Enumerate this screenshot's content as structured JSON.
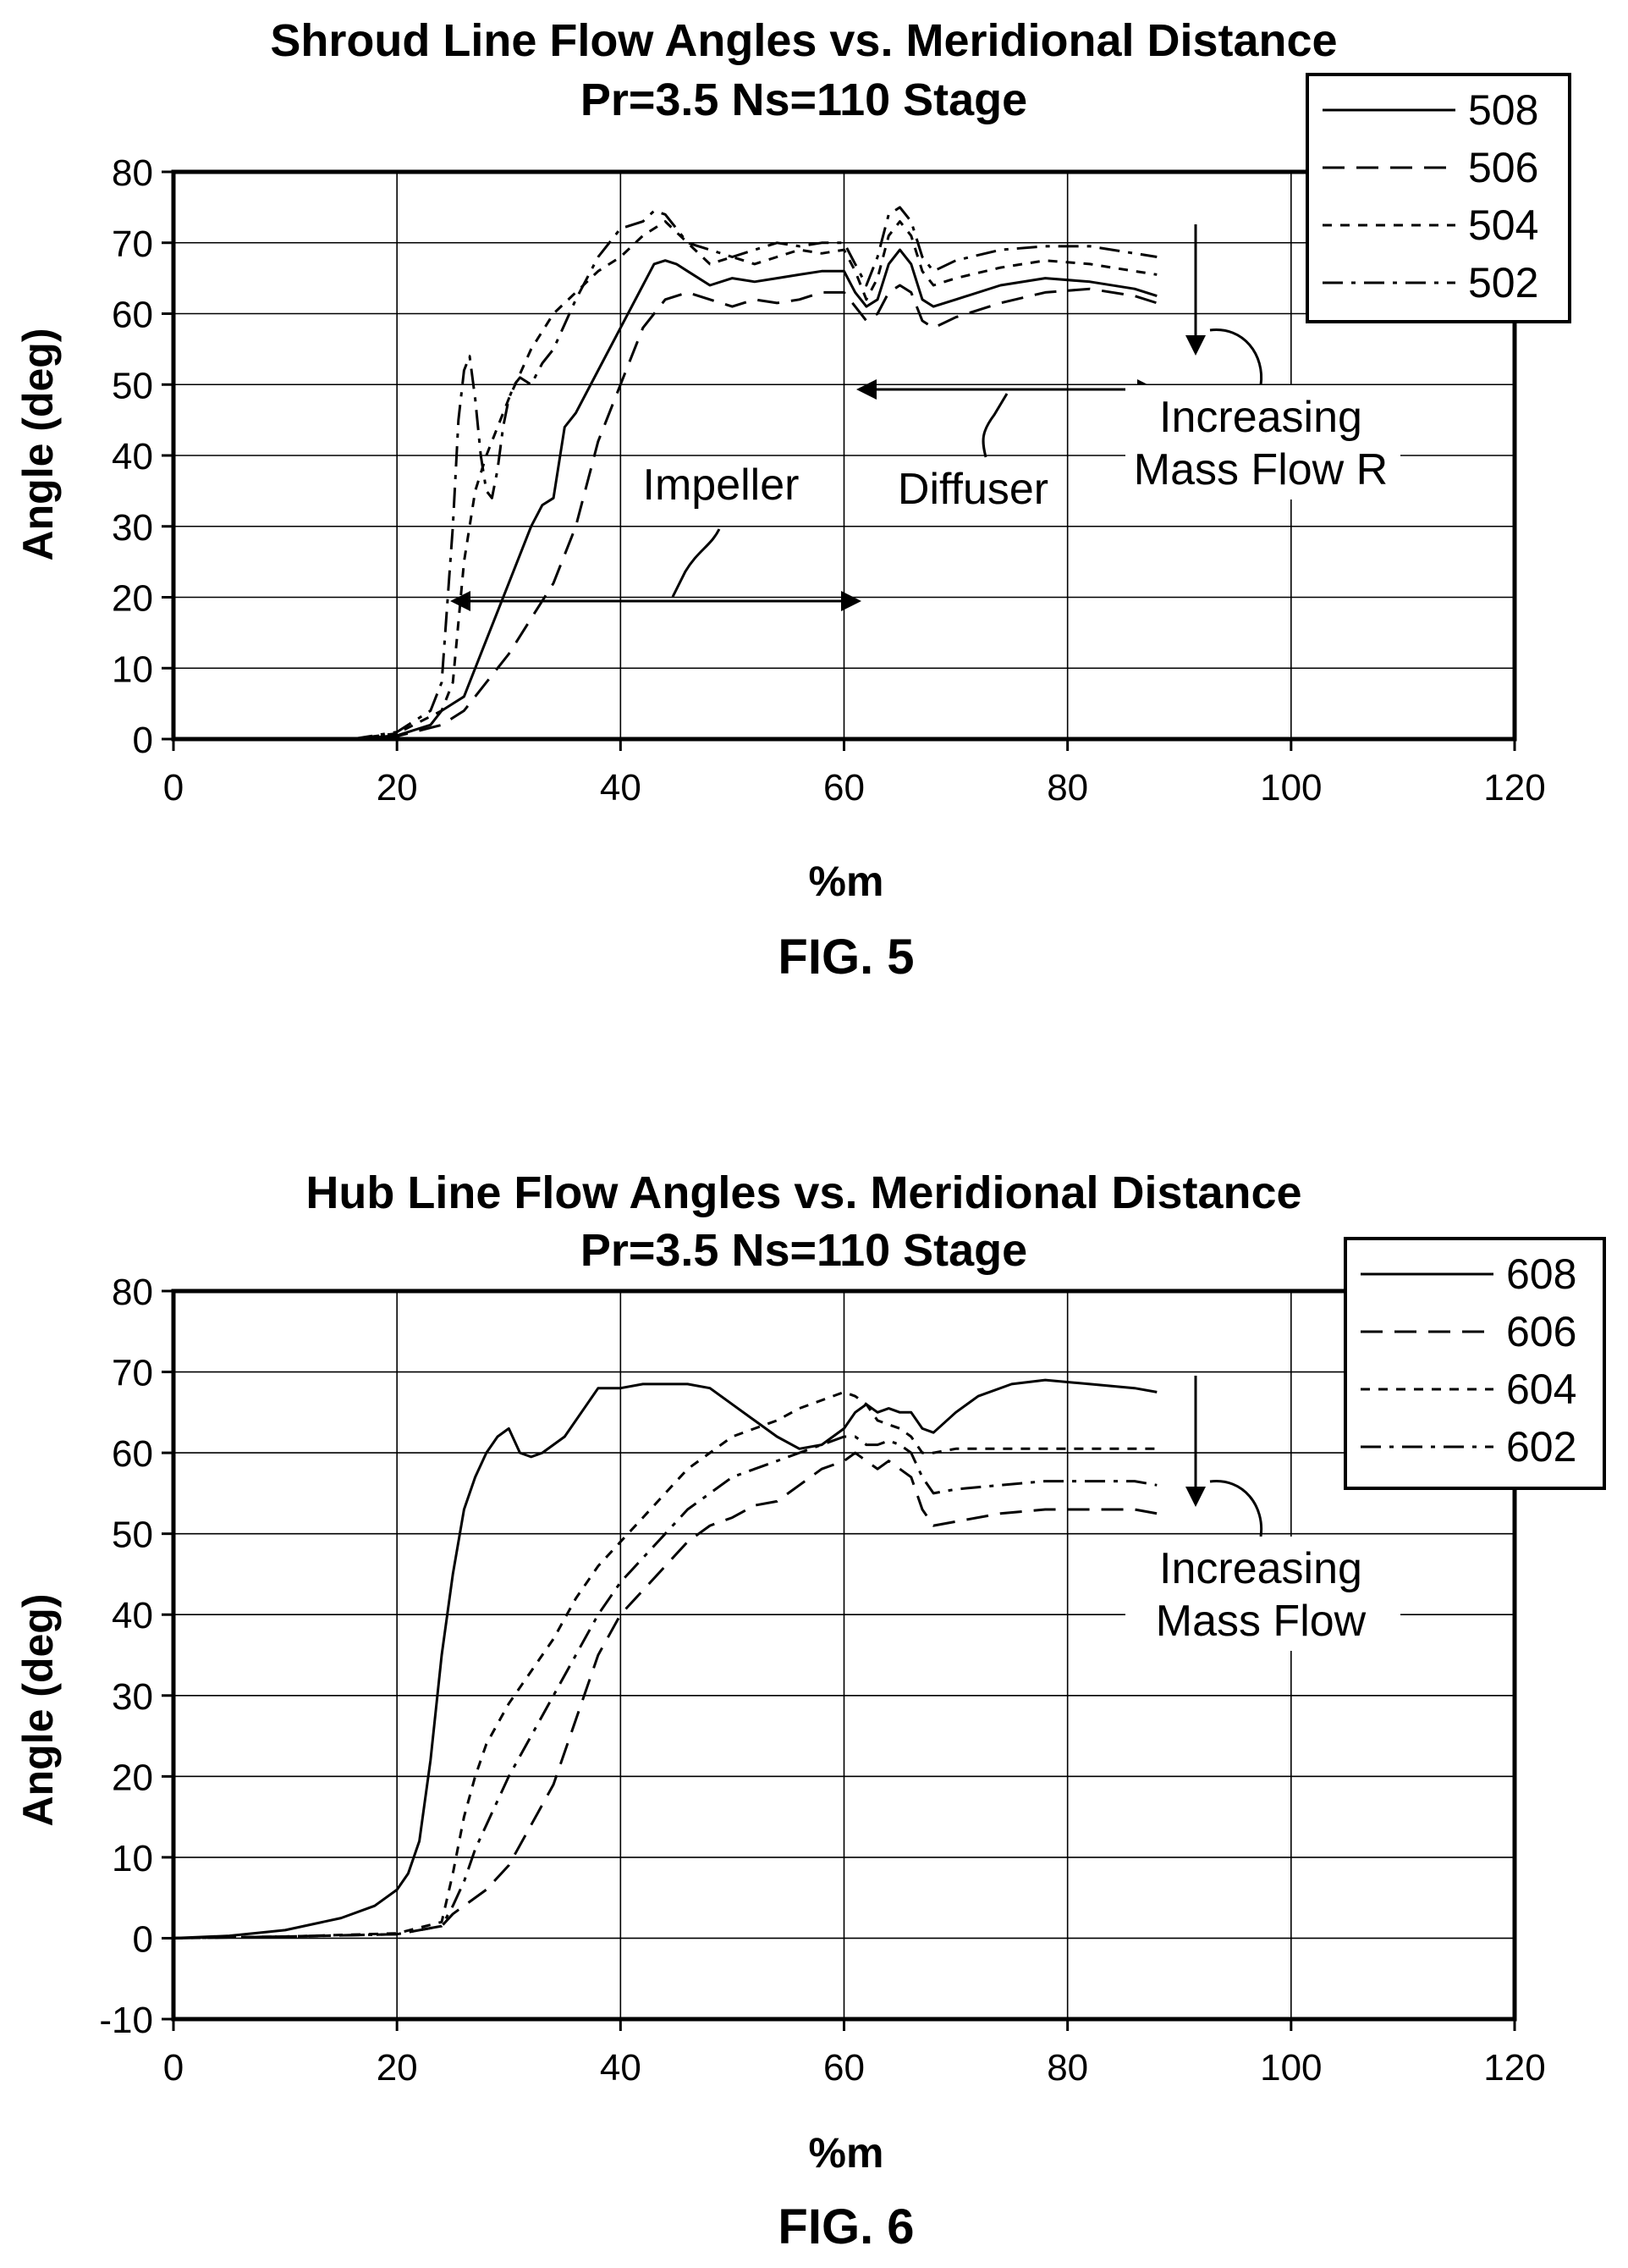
{
  "chart_data": [
    {
      "type": "line",
      "title": "Shroud Line Flow Angles vs. Meridional Distance",
      "subtitle": "Pr=3.5 Ns=110 Stage",
      "xlabel": "%m",
      "ylabel": "Angle (deg)",
      "caption": "FIG. 5",
      "xlim": [
        0,
        120
      ],
      "ylim": [
        0,
        80
      ],
      "xticks": [
        0,
        20,
        40,
        60,
        80,
        100,
        120
      ],
      "yticks": [
        0,
        10,
        20,
        30,
        40,
        50,
        60,
        70,
        80
      ],
      "grid": true,
      "legend_position": "top-right",
      "series": [
        {
          "name": "508",
          "dash": "solid",
          "x": [
            16,
            20,
            23,
            24,
            25,
            26,
            28,
            30,
            32,
            33,
            34,
            35,
            36,
            38,
            40,
            42,
            43,
            44,
            45,
            46,
            48,
            50,
            52,
            54,
            56,
            58,
            60,
            61,
            62,
            63,
            64,
            65,
            66,
            67,
            68,
            70,
            74,
            78,
            82,
            86,
            88
          ],
          "y": [
            0,
            0.5,
            2,
            4,
            5,
            6,
            14,
            22,
            30,
            33,
            34,
            44,
            46,
            52,
            58,
            64,
            67,
            67.5,
            67,
            66,
            64,
            65,
            64.5,
            65,
            65.5,
            66,
            66,
            63,
            61,
            62,
            67,
            69,
            67,
            62,
            61,
            62,
            64,
            65,
            64.5,
            63.5,
            62.5
          ]
        },
        {
          "name": "506",
          "dash": "long-dash",
          "x": [
            16,
            20,
            24,
            25,
            26,
            28,
            30,
            32,
            34,
            36,
            37,
            38,
            40,
            42,
            44,
            46,
            48,
            50,
            52,
            54,
            56,
            58,
            60,
            61,
            62,
            63,
            64,
            65,
            66,
            67,
            68,
            70,
            74,
            78,
            82,
            86,
            88
          ],
          "y": [
            0,
            0.4,
            2,
            3,
            4,
            8,
            12,
            17,
            22,
            30,
            36,
            42,
            50,
            58,
            62,
            63,
            62,
            61,
            62,
            61.5,
            62,
            63,
            63,
            61,
            59,
            60,
            63,
            64,
            63,
            59,
            58,
            59.5,
            61.5,
            63,
            63.5,
            62.5,
            61.5
          ]
        },
        {
          "name": "504",
          "dash": "short-dash",
          "x": [
            16,
            20,
            24,
            25,
            26,
            27,
            28,
            30,
            32,
            34,
            36,
            38,
            40,
            42,
            44,
            46,
            48,
            50,
            52,
            54,
            56,
            58,
            60,
            61,
            62,
            63,
            64,
            65,
            66,
            67,
            68,
            70,
            74,
            78,
            82,
            86,
            88
          ],
          "y": [
            0,
            0.8,
            4,
            8,
            25,
            35,
            40,
            48,
            55,
            60,
            63,
            66,
            68,
            71,
            73,
            70,
            67,
            68,
            67,
            68,
            69,
            68.5,
            69,
            66,
            62,
            65,
            71,
            73,
            71,
            66,
            64,
            65,
            66.5,
            67.5,
            67,
            66,
            65.5
          ]
        },
        {
          "name": "502",
          "dash": "dash-dot",
          "x": [
            16,
            20,
            23,
            24,
            25,
            25.5,
            26,
            26.5,
            27,
            27.5,
            28,
            28.5,
            29,
            29.5,
            30,
            30.5,
            31,
            32,
            33,
            34,
            36,
            38,
            40,
            42,
            43,
            44,
            45,
            46,
            48,
            50,
            52,
            54,
            56,
            58,
            60,
            61,
            62,
            63,
            64,
            65,
            66,
            67,
            68,
            70,
            74,
            78,
            82,
            86,
            88
          ],
          "y": [
            0,
            1,
            4,
            8,
            30,
            45,
            52,
            54,
            48,
            40,
            35,
            34,
            38,
            44,
            48,
            50,
            51,
            50,
            53,
            55,
            62,
            68,
            72,
            73,
            74.5,
            74,
            72,
            70,
            69,
            68,
            69,
            70,
            69.5,
            70,
            70,
            67,
            64,
            68,
            74,
            75,
            73,
            68,
            66,
            67.5,
            69,
            69.5,
            69.5,
            68.5,
            68
          ]
        }
      ],
      "annotations": {
        "impeller": "Impeller",
        "diffuser": "Diffuser",
        "increasing_1": "Increasing",
        "increasing_2": "Mass Flow R"
      }
    },
    {
      "type": "line",
      "title": "Hub Line Flow Angles vs. Meridional Distance",
      "subtitle": "Pr=3.5 Ns=110 Stage",
      "xlabel": "%m",
      "ylabel": "Angle (deg)",
      "caption": "FIG. 6",
      "xlim": [
        0,
        120
      ],
      "ylim": [
        -10,
        80
      ],
      "xticks": [
        0,
        20,
        40,
        60,
        80,
        100,
        120
      ],
      "yticks": [
        -10,
        0,
        10,
        20,
        30,
        40,
        50,
        60,
        70,
        80
      ],
      "grid": true,
      "legend_position": "top-right",
      "series": [
        {
          "name": "608",
          "dash": "solid",
          "x": [
            0,
            5,
            10,
            15,
            18,
            20,
            21,
            22,
            23,
            24,
            25,
            26,
            27,
            28,
            29,
            30,
            31,
            32,
            33,
            35,
            37,
            38,
            40,
            42,
            44,
            46,
            48,
            50,
            52,
            54,
            56,
            58,
            60,
            61,
            62,
            63,
            64,
            65,
            66,
            67,
            68,
            70,
            72,
            75,
            78,
            82,
            86,
            88
          ],
          "y": [
            0,
            0.3,
            1,
            2.5,
            4,
            6,
            8,
            12,
            22,
            35,
            45,
            53,
            57,
            60,
            62,
            63,
            60,
            59.5,
            60,
            62,
            66,
            68,
            68,
            68.5,
            68.5,
            68.5,
            68,
            66,
            64,
            62,
            60.5,
            61,
            63,
            65,
            66,
            65,
            65.5,
            65,
            65,
            63,
            62.5,
            65,
            67,
            68.5,
            69,
            68.5,
            68,
            67.5
          ]
        },
        {
          "name": "606",
          "dash": "long-dash",
          "x": [
            0,
            10,
            20,
            24,
            25,
            26,
            28,
            30,
            32,
            34,
            36,
            38,
            40,
            42,
            44,
            46,
            48,
            50,
            52,
            54,
            56,
            58,
            60,
            61,
            62,
            63,
            64,
            65,
            66,
            67,
            68,
            70,
            74,
            78,
            82,
            86,
            88
          ],
          "y": [
            0,
            0.2,
            0.5,
            1.5,
            3,
            4,
            6,
            9,
            14,
            19,
            27,
            35,
            40,
            43,
            46,
            49,
            51,
            52,
            53.5,
            54,
            56,
            58,
            59,
            60,
            59,
            58,
            59,
            58,
            57,
            53,
            51,
            51.5,
            52.5,
            53,
            53,
            53,
            52.5
          ]
        },
        {
          "name": "604",
          "dash": "short-dash",
          "x": [
            0,
            10,
            20,
            24,
            25,
            26,
            27,
            28,
            30,
            32,
            34,
            36,
            38,
            40,
            42,
            44,
            46,
            48,
            50,
            52,
            54,
            56,
            58,
            60,
            61,
            62,
            63,
            64,
            65,
            66,
            67,
            68,
            70,
            74,
            78,
            82,
            86,
            88
          ],
          "y": [
            0,
            0.2,
            0.6,
            2,
            8,
            15,
            20,
            24,
            29,
            33,
            37,
            42,
            46,
            49,
            52,
            55,
            58,
            60,
            62,
            63,
            64,
            65.5,
            66.5,
            67.5,
            67,
            66,
            64,
            63.5,
            63,
            62,
            60,
            60,
            60.5,
            60.5,
            60.5,
            60.5,
            60.5,
            60.5
          ]
        },
        {
          "name": "602",
          "dash": "dash-dot",
          "x": [
            0,
            10,
            20,
            24,
            25,
            26,
            27,
            28,
            30,
            32,
            34,
            36,
            38,
            40,
            42,
            44,
            46,
            48,
            50,
            52,
            54,
            56,
            58,
            60,
            61,
            62,
            63,
            64,
            65,
            66,
            67,
            68,
            70,
            74,
            78,
            82,
            86,
            88
          ],
          "y": [
            0,
            0.2,
            0.5,
            1.5,
            4,
            7,
            11,
            14,
            20,
            25,
            30,
            35,
            40,
            44,
            47,
            50,
            53,
            55,
            57,
            58,
            59,
            60,
            61,
            62,
            62,
            61,
            61,
            61.5,
            61,
            60,
            57,
            55,
            55.5,
            56,
            56.5,
            56.5,
            56.5,
            56
          ]
        }
      ],
      "annotations": {
        "increasing_1": "Increasing",
        "increasing_2": "Mass Flow"
      }
    }
  ]
}
